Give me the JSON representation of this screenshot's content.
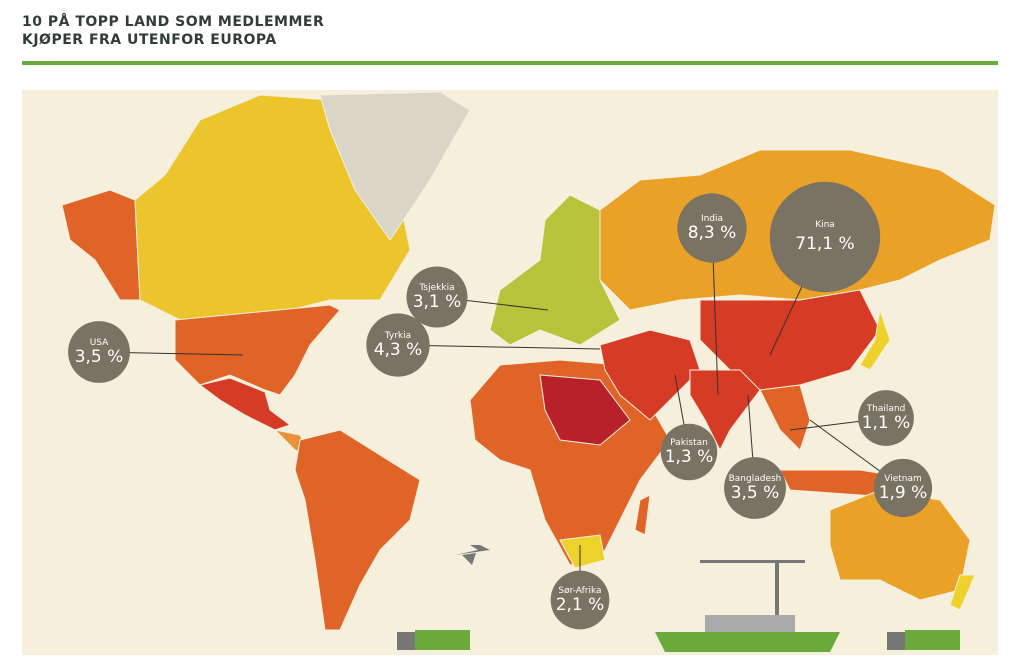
{
  "header": {
    "title_lines": [
      "10 PÅ TOPP LAND SOM MEDLEMMER",
      "KJØPER FRA UTENFOR EUROPA"
    ]
  },
  "bubbles": [
    {
      "name": "Kina",
      "share": 71.1,
      "label": "71,1 %"
    },
    {
      "name": "India",
      "share": 8.3,
      "label": "8,3 %"
    },
    {
      "name": "Tyrkia",
      "share": 4.3,
      "label": "4,3 %"
    },
    {
      "name": "USA",
      "share": 3.5,
      "label": "3,5 %"
    },
    {
      "name": "Bangladesh",
      "share": 3.5,
      "label": "3,5 %"
    },
    {
      "name": "Tsjekkia",
      "share": 3.1,
      "label": "3,1 %"
    },
    {
      "name": "Sør-Afrika",
      "share": 2.1,
      "label": "2,1 %"
    },
    {
      "name": "Vietnam",
      "share": 1.9,
      "label": "1,9 %"
    },
    {
      "name": "Pakistan",
      "share": 1.3,
      "label": "1,3 %"
    },
    {
      "name": "Thailand",
      "share": 1.1,
      "label": "1,1 %"
    }
  ]
}
